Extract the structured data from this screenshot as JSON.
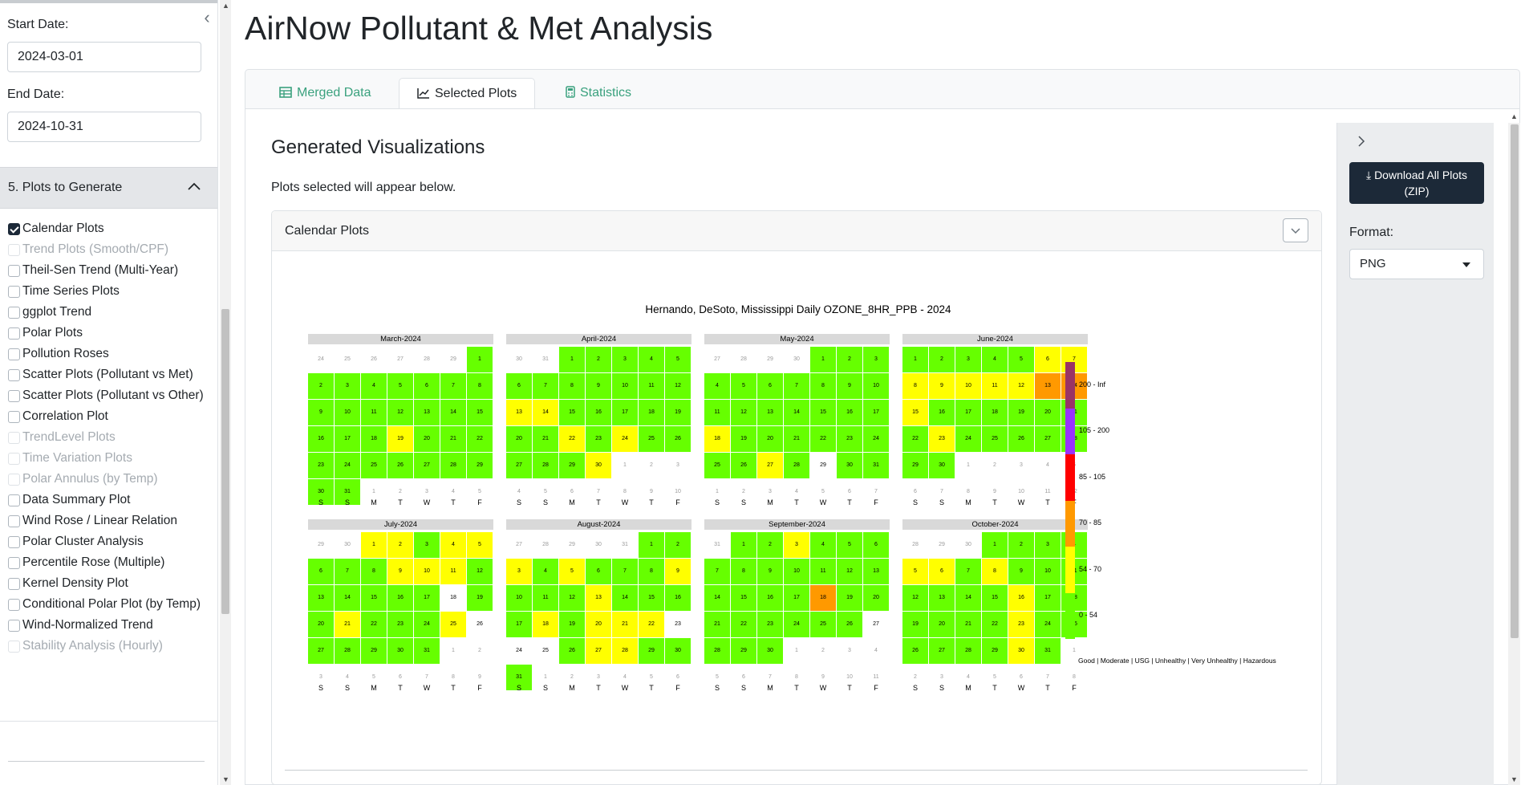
{
  "app_title": "AirNow Pollutant & Met Analysis",
  "sidebar": {
    "start_date_label": "Start Date:",
    "start_date_value": "2024-03-01",
    "end_date_label": "End Date:",
    "end_date_value": "2024-10-31",
    "section_title": "5. Plots to Generate",
    "plot_options": [
      {
        "label": "Calendar Plots",
        "checked": true,
        "disabled": false
      },
      {
        "label": "Trend Plots (Smooth/CPF)",
        "checked": false,
        "disabled": true
      },
      {
        "label": "Theil-Sen Trend (Multi-Year)",
        "checked": false,
        "disabled": false
      },
      {
        "label": "Time Series Plots",
        "checked": false,
        "disabled": false
      },
      {
        "label": "ggplot Trend",
        "checked": false,
        "disabled": false
      },
      {
        "label": "Polar Plots",
        "checked": false,
        "disabled": false
      },
      {
        "label": "Pollution Roses",
        "checked": false,
        "disabled": false
      },
      {
        "label": "Scatter Plots (Pollutant vs Met)",
        "checked": false,
        "disabled": false
      },
      {
        "label": "Scatter Plots (Pollutant vs Other)",
        "checked": false,
        "disabled": false
      },
      {
        "label": "Correlation Plot",
        "checked": false,
        "disabled": false
      },
      {
        "label": "TrendLevel Plots",
        "checked": false,
        "disabled": true
      },
      {
        "label": "Time Variation Plots",
        "checked": false,
        "disabled": true
      },
      {
        "label": "Polar Annulus (by Temp)",
        "checked": false,
        "disabled": true
      },
      {
        "label": "Data Summary Plot",
        "checked": false,
        "disabled": false
      },
      {
        "label": "Wind Rose / Linear Relation",
        "checked": false,
        "disabled": false
      },
      {
        "label": "Polar Cluster Analysis",
        "checked": false,
        "disabled": false
      },
      {
        "label": "Percentile Rose (Multiple)",
        "checked": false,
        "disabled": false
      },
      {
        "label": "Kernel Density Plot",
        "checked": false,
        "disabled": false
      },
      {
        "label": "Conditional Polar Plot (by Temp)",
        "checked": false,
        "disabled": false
      },
      {
        "label": "Wind-Normalized Trend",
        "checked": false,
        "disabled": false
      },
      {
        "label": "Stability Analysis (Hourly)",
        "checked": false,
        "disabled": true
      }
    ]
  },
  "tabs": [
    {
      "label": "Merged Data",
      "icon": "table-icon",
      "active": false
    },
    {
      "label": "Selected Plots",
      "icon": "line-chart-icon",
      "active": true
    },
    {
      "label": "Statistics",
      "icon": "calculator-icon",
      "active": false
    }
  ],
  "main": {
    "heading": "Generated Visualizations",
    "subtext": "Plots selected will appear below.",
    "card_title": "Calendar Plots"
  },
  "right_panel": {
    "download_label_line1": "Download All Plots",
    "download_label_line2": "(ZIP)",
    "format_label": "Format:",
    "format_value": "PNG"
  },
  "colors": {
    "good": "#66ff00",
    "moderate": "#ffff00",
    "usg": "#ff9900",
    "unhealthy": "#ff0000",
    "very_unhealthy": "#9933ff",
    "hazardous": "#993366",
    "no_data": "#ffffff",
    "accent_tab": "#3aa17e",
    "dark_button": "#1c2938"
  },
  "chart_data": {
    "type": "heatmap",
    "title": "Hernando, DeSoto, Mississippi Daily OZONE_8HR_PPB - 2024",
    "weekday_labels": [
      "S",
      "S",
      "M",
      "T",
      "W",
      "T",
      "F"
    ],
    "legend": {
      "bins": [
        "0 - 54",
        "54 - 70",
        "70 - 85",
        "85 - 105",
        "105 - 200",
        "200 - Inf"
      ],
      "categories_text": "Good | Moderate | USG | Unhealthy | Very Unhealthy | Hazardous"
    },
    "months": [
      {
        "name": "March-2024",
        "first_col": 6,
        "days": 31,
        "prev_days": 29,
        "cats": "GGGGGGGGGGGGGGGGGGMGGGGGGGGGGGG"
      },
      {
        "name": "April-2024",
        "first_col": 2,
        "days": 30,
        "prev_days": 31,
        "cats": "GGGGGGGGGGGGMMGGGGGGGMGMGGGGGM"
      },
      {
        "name": "May-2024",
        "first_col": 4,
        "days": 31,
        "prev_days": 30,
        "cats": "GGGGGGGGGGGGGGGGGMGGGGGGGGMGNGG"
      },
      {
        "name": "June-2024",
        "first_col": 0,
        "days": 30,
        "prev_days": 31,
        "cats": "GGGGGMMMMMMMUUMGGGGGGGMGGGGGGG"
      },
      {
        "name": "July-2024",
        "first_col": 2,
        "days": 31,
        "prev_days": 30,
        "cats": "MMGMMGGGMMMGGGGGGNGGMGGGMNGGGGG"
      },
      {
        "name": "August-2024",
        "first_col": 5,
        "days": 31,
        "prev_days": 31,
        "cats": "GGMGMGGGMGGGMGGGGMGMMMNNNGMMGGG"
      },
      {
        "name": "September-2024",
        "first_col": 1,
        "days": 30,
        "prev_days": 31,
        "cats": "GGMGGGGGGGGGGGGGGUGGGGGGGGNGGG"
      },
      {
        "name": "October-2024",
        "first_col": 3,
        "days": 31,
        "prev_days": 30,
        "cats": "GGGGMMGMGGGGGGGMGGGGGGMGGGGGGMG"
      }
    ]
  }
}
